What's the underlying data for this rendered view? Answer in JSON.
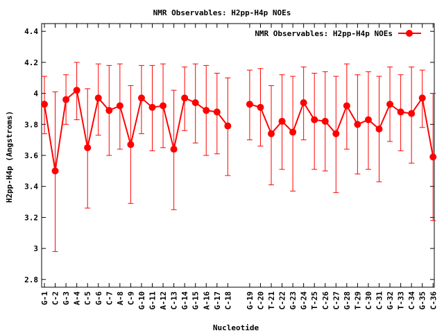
{
  "chart_data": {
    "type": "line",
    "title": "NMR Observables: H2pp-H4p NOEs",
    "xlabel": "Nucleotide",
    "ylabel": "H2pp-H4p (Angstroms)",
    "ylim": [
      2.75,
      4.45
    ],
    "yticks": [
      2.8,
      3,
      3.2,
      3.4,
      3.6,
      3.8,
      4,
      4.2,
      4.4
    ],
    "ytick_labels": [
      "2.8",
      "3",
      "3.2",
      "3.4",
      "3.6",
      "3.8",
      "4",
      "4.2",
      "4.4"
    ],
    "legend_position": "top-right",
    "categories": [
      "G-1",
      "C-2",
      "G-3",
      "A-4",
      "C-5",
      "G-6",
      "C-7",
      "A-8",
      "C-9",
      "G-10",
      "G-11",
      "A-12",
      "C-13",
      "G-14",
      "G-15",
      "A-16",
      "G-17",
      "C-18",
      "G-19",
      "C-20",
      "T-21",
      "C-22",
      "G-23",
      "G-24",
      "T-25",
      "C-26",
      "C-27",
      "G-28",
      "T-29",
      "C-30",
      "C-31",
      "G-32",
      "T-33",
      "C-34",
      "G-35",
      "C-36"
    ],
    "series": [
      {
        "name": "NMR Observables: H2pp-H4p NOEs",
        "color": "#ff0000",
        "segments": [
          [
            0,
            17
          ],
          [
            18,
            35
          ]
        ],
        "values": [
          3.93,
          3.5,
          3.96,
          4.02,
          3.65,
          3.97,
          3.89,
          3.92,
          3.67,
          3.97,
          3.91,
          3.92,
          3.64,
          3.97,
          3.94,
          3.89,
          3.88,
          3.79,
          3.93,
          3.91,
          3.74,
          3.82,
          3.75,
          3.94,
          3.83,
          3.82,
          3.74,
          3.92,
          3.8,
          3.83,
          3.77,
          3.93,
          3.88,
          3.87,
          3.97,
          3.59
        ],
        "err_low": [
          3.74,
          2.98,
          3.8,
          3.83,
          3.26,
          3.73,
          3.6,
          3.64,
          3.29,
          3.74,
          3.63,
          3.65,
          3.25,
          3.76,
          3.68,
          3.6,
          3.61,
          3.47,
          3.7,
          3.66,
          3.41,
          3.51,
          3.37,
          3.7,
          3.51,
          3.5,
          3.36,
          3.64,
          3.48,
          3.51,
          3.43,
          3.69,
          3.63,
          3.55,
          3.78,
          3.18
        ],
        "err_high": [
          4.11,
          4.01,
          4.12,
          4.2,
          4.03,
          4.19,
          4.18,
          4.19,
          4.05,
          4.18,
          4.18,
          4.19,
          4.02,
          4.17,
          4.19,
          4.18,
          4.13,
          4.1,
          4.15,
          4.16,
          4.05,
          4.12,
          4.11,
          4.17,
          4.13,
          4.14,
          4.11,
          4.19,
          4.12,
          4.14,
          4.11,
          4.17,
          4.12,
          4.17,
          4.15,
          4.0
        ]
      }
    ]
  }
}
